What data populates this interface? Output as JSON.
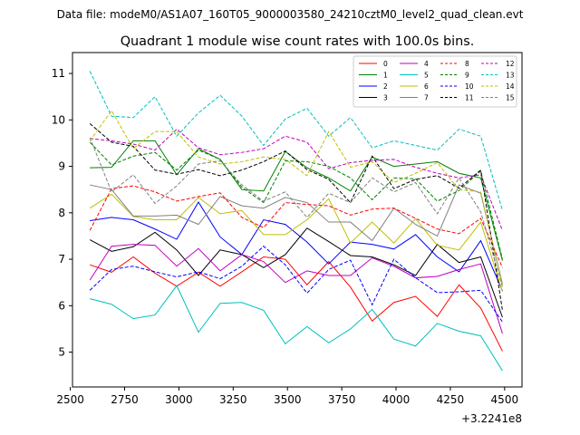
{
  "chart_data": {
    "type": "line",
    "suptitle": "Data file: modeM0/AS1A07_160T05_9000003580_24210cztM0_level2_quad_clean.evt",
    "title": "Quadrant 1 module wise count rates with 100.0s bins.",
    "xlabel": "",
    "ylabel": "",
    "x_offset_label": "+3.2241e8",
    "xlim": [
      2510,
      4580
    ],
    "ylim": [
      4.25,
      11.45
    ],
    "xticks": [
      2500,
      2750,
      3000,
      3250,
      3500,
      3750,
      4000,
      4250,
      4500
    ],
    "yticks": [
      5,
      6,
      7,
      8,
      9,
      10,
      11
    ],
    "grid": false,
    "legend_position": "top-right",
    "x": [
      2590,
      2690,
      2790,
      2890,
      2990,
      3090,
      3190,
      3290,
      3390,
      3490,
      3590,
      3690,
      3790,
      3890,
      3990,
      4090,
      4190,
      4290,
      4390,
      4490
    ],
    "series": [
      {
        "name": "0",
        "color": "#ff0000",
        "dash": "solid",
        "values": [
          6.88,
          6.72,
          7.05,
          6.7,
          6.42,
          6.72,
          6.42,
          6.73,
          7.05,
          7.0,
          6.45,
          6.95,
          6.4,
          5.67,
          6.07,
          6.2,
          5.77,
          6.45,
          5.95,
          5.02
        ]
      },
      {
        "name": "1",
        "color": "#008000",
        "dash": "solid",
        "values": [
          8.97,
          8.98,
          9.55,
          9.55,
          8.82,
          9.38,
          9.15,
          8.5,
          8.47,
          9.32,
          8.97,
          8.75,
          8.47,
          9.2,
          9.0,
          9.05,
          9.1,
          8.85,
          8.75,
          6.97
        ]
      },
      {
        "name": "2",
        "color": "#0000ff",
        "dash": "solid",
        "values": [
          7.83,
          7.9,
          7.85,
          7.65,
          7.43,
          8.23,
          7.48,
          7.1,
          7.85,
          7.75,
          7.37,
          6.9,
          7.37,
          7.32,
          7.22,
          7.53,
          7.05,
          6.73,
          7.4,
          6.32
        ]
      },
      {
        "name": "3",
        "color": "#000000",
        "dash": "solid",
        "values": [
          7.42,
          7.17,
          7.27,
          7.58,
          7.2,
          6.65,
          7.2,
          7.1,
          6.82,
          7.1,
          7.67,
          7.38,
          7.08,
          7.05,
          6.88,
          6.65,
          7.32,
          6.93,
          7.05,
          5.75
        ]
      },
      {
        "name": "4",
        "color": "#bf00bf",
        "dash": "solid",
        "values": [
          6.55,
          7.28,
          7.32,
          7.3,
          6.85,
          7.23,
          6.75,
          7.1,
          6.95,
          6.5,
          6.75,
          6.65,
          6.65,
          7.03,
          6.85,
          6.6,
          6.63,
          6.78,
          6.9,
          5.4
        ]
      },
      {
        "name": "5",
        "color": "#00bfbf",
        "dash": "solid",
        "values": [
          6.15,
          6.03,
          5.72,
          5.8,
          6.43,
          5.43,
          6.05,
          6.07,
          5.9,
          5.18,
          5.55,
          5.2,
          5.5,
          5.92,
          5.28,
          5.13,
          5.62,
          5.45,
          5.35,
          4.6
        ]
      },
      {
        "name": "6",
        "color": "#bfbf00",
        "dash": "solid",
        "values": [
          8.1,
          8.4,
          7.92,
          7.85,
          7.85,
          8.33,
          7.98,
          8.05,
          7.53,
          7.53,
          7.85,
          8.3,
          7.35,
          7.8,
          7.35,
          7.87,
          7.3,
          7.2,
          7.8,
          6.3
        ]
      },
      {
        "name": "7",
        "color": "#808080",
        "dash": "solid",
        "values": [
          8.6,
          8.5,
          7.93,
          7.93,
          7.95,
          7.75,
          8.35,
          8.15,
          8.1,
          8.33,
          8.22,
          7.8,
          7.8,
          7.4,
          8.1,
          7.75,
          7.5,
          8.6,
          8.42,
          6.47
        ]
      },
      {
        "name": "8",
        "color": "#ff0000",
        "dash": "dashed",
        "values": [
          7.62,
          8.52,
          8.58,
          8.45,
          8.25,
          8.35,
          8.43,
          7.9,
          7.68,
          8.22,
          8.18,
          8.15,
          7.95,
          8.08,
          8.1,
          7.88,
          7.65,
          7.55,
          7.88,
          6.82
        ]
      },
      {
        "name": "9",
        "color": "#008000",
        "dash": "dashed",
        "values": [
          9.52,
          9.03,
          9.22,
          9.3,
          8.92,
          9.35,
          9.15,
          8.55,
          8.22,
          9.12,
          9.1,
          9.0,
          8.75,
          8.28,
          8.75,
          8.73,
          8.25,
          8.48,
          8.9,
          7.0
        ]
      },
      {
        "name": "10",
        "color": "#0000ff",
        "dash": "dashed",
        "values": [
          6.33,
          6.78,
          6.85,
          6.73,
          6.62,
          6.73,
          6.58,
          6.85,
          7.28,
          6.88,
          6.27,
          6.78,
          6.98,
          6.02,
          7.0,
          6.6,
          6.28,
          6.3,
          6.33,
          5.65
        ]
      },
      {
        "name": "11",
        "color": "#000000",
        "dash": "dashed",
        "values": [
          9.92,
          9.52,
          9.43,
          8.92,
          8.83,
          8.93,
          8.8,
          8.92,
          9.1,
          9.33,
          8.93,
          8.72,
          8.22,
          9.22,
          8.52,
          8.72,
          8.8,
          8.53,
          8.92,
          5.9
        ]
      },
      {
        "name": "12",
        "color": "#bf00bf",
        "dash": "dashed",
        "values": [
          9.6,
          9.55,
          9.48,
          9.35,
          9.8,
          9.4,
          9.25,
          9.3,
          9.38,
          9.65,
          9.52,
          8.95,
          9.08,
          9.13,
          9.15,
          8.98,
          8.85,
          8.75,
          8.82,
          7.62
        ]
      },
      {
        "name": "13",
        "color": "#00bfbf",
        "dash": "dashed",
        "values": [
          11.05,
          10.08,
          10.05,
          10.5,
          9.65,
          10.15,
          10.53,
          10.08,
          9.45,
          10.02,
          10.25,
          9.65,
          10.05,
          9.4,
          9.55,
          9.45,
          9.35,
          9.8,
          9.65,
          8.05
        ]
      },
      {
        "name": "14",
        "color": "#bfbf00",
        "dash": "dashed",
        "values": [
          9.55,
          10.2,
          9.38,
          9.75,
          9.75,
          9.2,
          9.05,
          9.1,
          9.2,
          9.15,
          8.8,
          9.75,
          8.98,
          9.1,
          8.65,
          8.85,
          9.08,
          8.5,
          8.45,
          6.42
        ]
      },
      {
        "name": "15",
        "color": "#808080",
        "dash": "dashed",
        "values": [
          9.62,
          8.45,
          8.82,
          8.2,
          8.58,
          9.05,
          9.12,
          8.6,
          8.25,
          8.45,
          7.9,
          8.42,
          8.22,
          8.75,
          8.45,
          8.65,
          7.98,
          8.75,
          8.02,
          6.4
        ]
      }
    ]
  }
}
